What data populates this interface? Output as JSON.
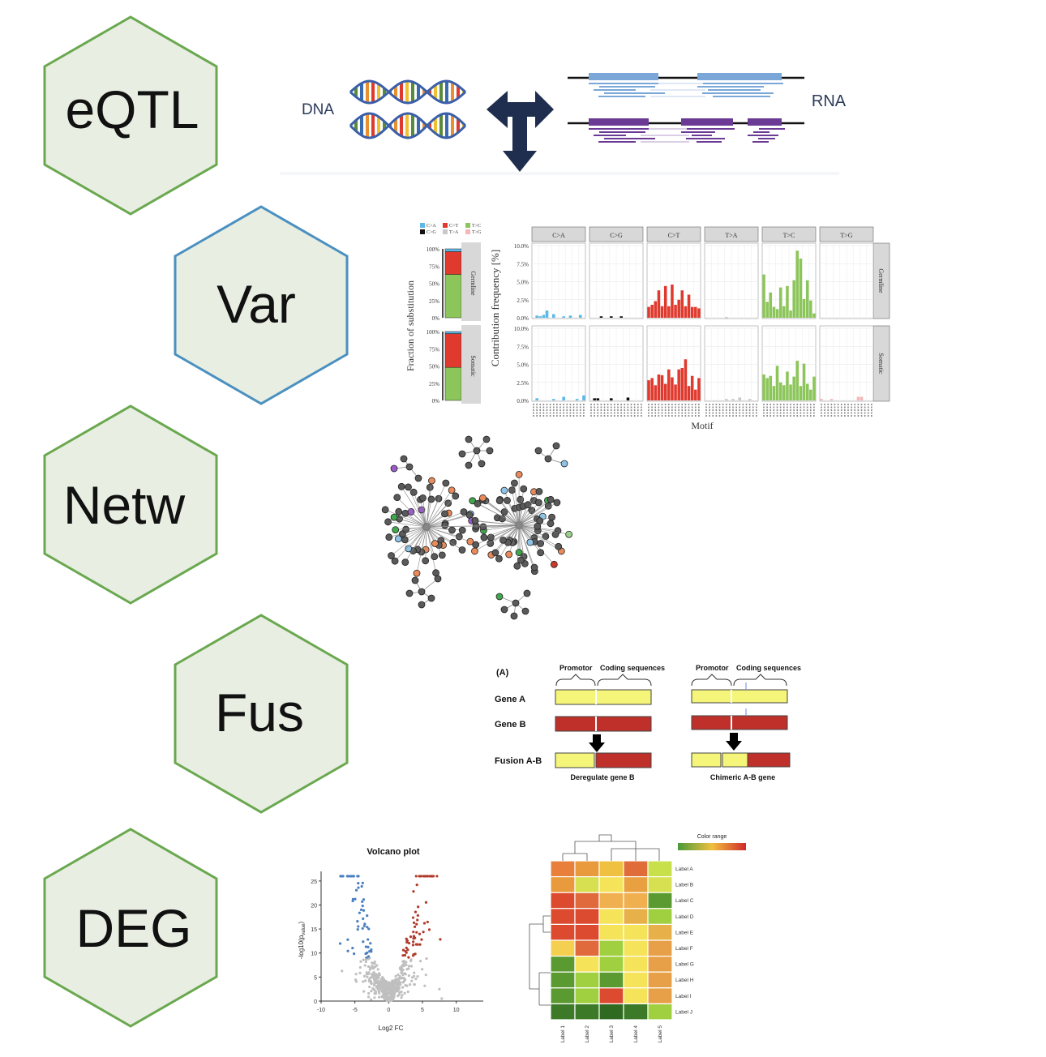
{
  "hexagons": [
    {
      "label": "eQTL",
      "border": "#6aa84f"
    },
    {
      "label": "Var",
      "border": "#4a90c0"
    },
    {
      "label": "Netw",
      "border": "#6aa84f"
    },
    {
      "label": "Fus",
      "border": "#6aa84f"
    },
    {
      "label": "DEG",
      "border": "#6aa84f"
    }
  ],
  "hex_fill": "#e8eee2",
  "eqtl": {
    "dna_label": "DNA",
    "rna_label": "RNA"
  },
  "var_panel": {
    "legend": [
      "C>A",
      "C>T",
      "T>C",
      "C>G",
      "T>A",
      "T>G"
    ],
    "legend_colors": [
      "#5bb8e8",
      "#e03a2e",
      "#8cc65a",
      "#111111",
      "#c8c8c8",
      "#f4b6b6"
    ],
    "left_ylabel": "Fraction of substitution",
    "left_ticks": [
      "100%",
      "75%",
      "50%",
      "25%",
      "0%"
    ],
    "facets_row": [
      "Germline",
      "Somatic"
    ],
    "facets_col": [
      "C>A",
      "C>G",
      "C>T",
      "T>A",
      "T>C",
      "T>G"
    ],
    "right_ylabel": "Contribution frequency [%]",
    "right_ticks": [
      "10.0%",
      "7.5%",
      "5.0%",
      "2.5%",
      "0.0%"
    ],
    "xlabel": "Motif"
  },
  "fusion": {
    "panel_label": "(A)",
    "promotor": "Promotor",
    "coding": "Coding sequences",
    "gene_a": "Gene A",
    "gene_b": "Gene B",
    "fusion": "Fusion A-B",
    "caption_left": "Deregulate gene B",
    "caption_right": "Chimeric A-B gene"
  },
  "volcano": {
    "title": "Volcano plot",
    "ylabel": "-log10(p",
    "ylabel_sub": "value",
    "ylabel_end": ")",
    "xlabel": "Log2 FC",
    "yticks": [
      "25",
      "20",
      "15",
      "10",
      "5",
      "0"
    ],
    "xticks": [
      "-10",
      "-5",
      "0",
      "5",
      "10"
    ]
  },
  "heatmap": {
    "legend_title": "Color range",
    "row_labels": [
      "Label A",
      "Label B",
      "Label C",
      "Label D",
      "Label E",
      "Label F",
      "Label G",
      "Label H",
      "Label I",
      "Label J"
    ],
    "col_labels": [
      "Label 1",
      "Label 2",
      "Label 3",
      "Label 4",
      "Label 5"
    ],
    "colors": [
      [
        "#e8803c",
        "#e89a3c",
        "#f0c040",
        "#e06c3a",
        "#c8e04a"
      ],
      [
        "#e89a3c",
        "#d6e050",
        "#f5e35a",
        "#e8a040",
        "#d6e050"
      ],
      [
        "#dc4a30",
        "#e06a3c",
        "#f0b050",
        "#f0b050",
        "#5a9a30"
      ],
      [
        "#dc4a30",
        "#dc4a30",
        "#f5e35a",
        "#e8b048",
        "#a0d040"
      ],
      [
        "#dc4a30",
        "#dc4a30",
        "#f5e35a",
        "#f5e35a",
        "#e8b048"
      ],
      [
        "#f5d050",
        "#e06a3c",
        "#a0d040",
        "#f5e35a",
        "#e8a048"
      ],
      [
        "#5a9a30",
        "#f5e35a",
        "#a0d040",
        "#f5e35a",
        "#e8a048"
      ],
      [
        "#5a9a30",
        "#a0d040",
        "#5a9a30",
        "#f5e35a",
        "#e8a048"
      ],
      [
        "#5a9a30",
        "#a0d040",
        "#dc4a30",
        "#f5e35a",
        "#e8a048"
      ],
      [
        "#3c7a28",
        "#3c7a28",
        "#2f6a20",
        "#3c7a28",
        "#a0d040"
      ]
    ]
  }
}
